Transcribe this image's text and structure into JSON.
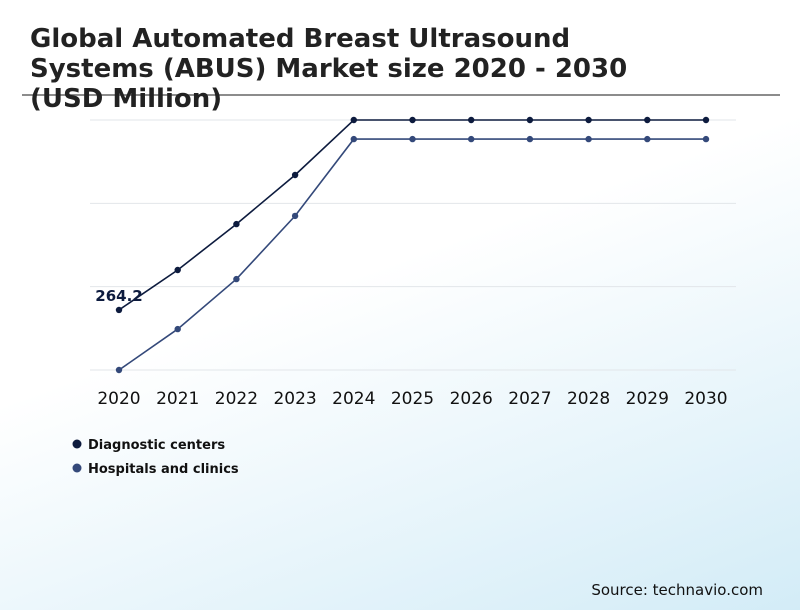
{
  "chart_data": {
    "type": "line",
    "title": "Global Automated Breast Ultrasound Systems (ABUS) Market size 2020 - 2030 (USD Million)",
    "x": [
      "2020",
      "2021",
      "2022",
      "2023",
      "2024",
      "2025",
      "2026",
      "2027",
      "2028",
      "2029",
      "2030"
    ],
    "series": [
      {
        "name": "Diagnostic centers",
        "color": "#0d1b3e",
        "values": [
          264.2,
          440,
          642,
          858,
          1100,
          1100,
          1100,
          1100,
          1100,
          1100,
          1100
        ]
      },
      {
        "name": "Hospitals and clinics",
        "color": "#34497a",
        "values": [
          0,
          180,
          400,
          678,
          1016,
          1016,
          1016,
          1016,
          1016,
          1016,
          1016
        ]
      }
    ],
    "ylim": [
      0,
      1100
    ],
    "yticks": [
      0,
      367,
      733,
      1100
    ],
    "grid": true,
    "source": "Source: technavio.com"
  }
}
